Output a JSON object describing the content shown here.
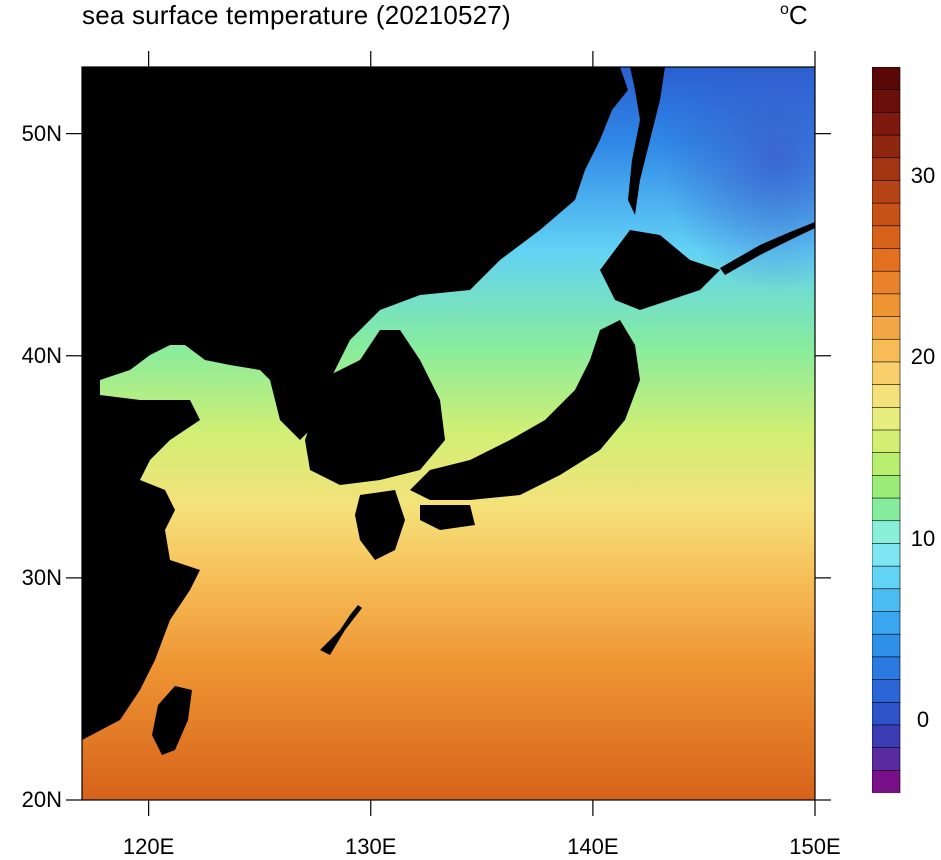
{
  "title": "sea surface temperature (20210527)",
  "unit": {
    "degree_symbol": "o",
    "letter": "C"
  },
  "map": {
    "lon_range": [
      117,
      150
    ],
    "lat_range": [
      20,
      53
    ],
    "lon_ticks": [
      "120E",
      "130E",
      "140E",
      "150E"
    ],
    "lat_ticks": [
      "20N",
      "30N",
      "40N",
      "50N"
    ],
    "land_color": "#000000"
  },
  "colorbar": {
    "range": [
      -4,
      36
    ],
    "tick_labels": [
      "0",
      "10",
      "20",
      "30"
    ],
    "colors": [
      "#7a0f8a",
      "#5a2aa0",
      "#3c3db5",
      "#2e52c8",
      "#2a66d6",
      "#2a7ae2",
      "#2f90ea",
      "#3aa6ef",
      "#4bbcf2",
      "#62d2f5",
      "#7de6f2",
      "#88f0d8",
      "#86ec9e",
      "#9aec78",
      "#b8ee6e",
      "#d2ef74",
      "#e8ee7e",
      "#f5e17a",
      "#f8cf6a",
      "#f6bd57",
      "#f3a744",
      "#ee9433",
      "#e98228",
      "#e1711f",
      "#d6621a",
      "#c75217",
      "#b64315",
      "#a33512",
      "#8f2710",
      "#7d1a0d",
      "#6b0f0a",
      "#5a0707"
    ]
  }
}
